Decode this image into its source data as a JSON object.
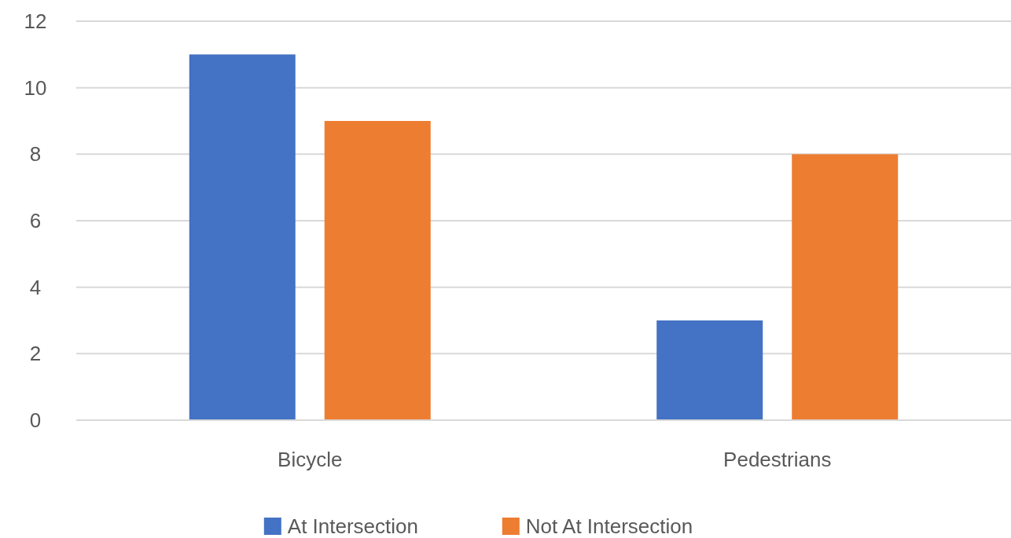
{
  "chart_data": {
    "type": "bar",
    "categories": [
      "Bicycle",
      "Pedestrians"
    ],
    "series": [
      {
        "name": "At Intersection",
        "color": "#4472c4",
        "values": [
          11,
          3
        ]
      },
      {
        "name": "Not At Intersection",
        "color": "#ed7d31",
        "values": [
          9,
          8
        ]
      }
    ],
    "ylim": [
      0,
      12
    ],
    "yticks": [
      0,
      2,
      4,
      6,
      8,
      10,
      12
    ],
    "grid": "y",
    "legend": "bottom"
  }
}
